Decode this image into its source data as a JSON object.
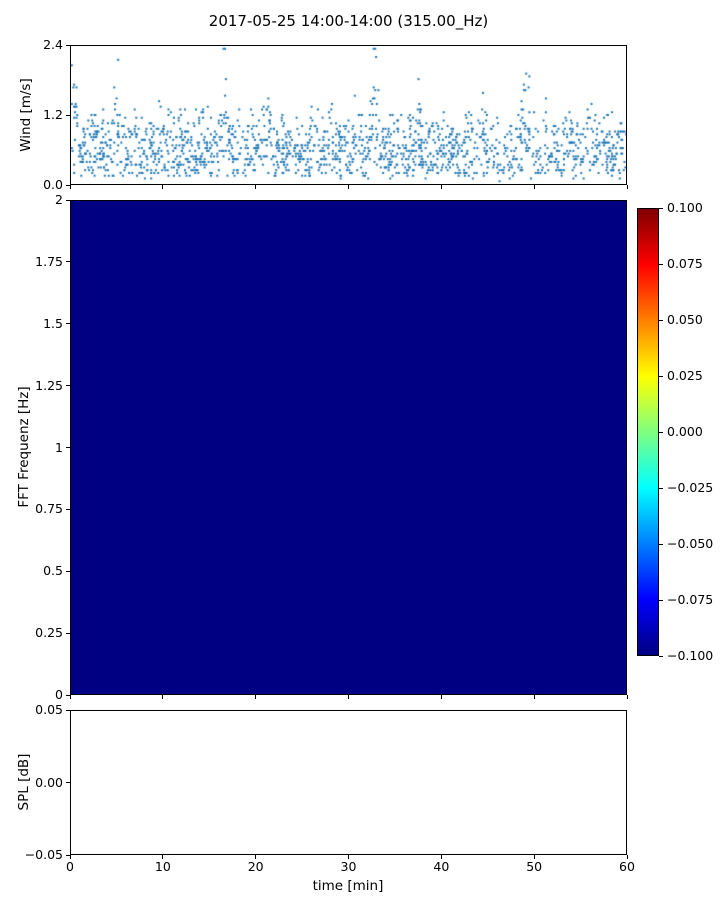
{
  "title": "2017-05-25 14:00-14:00 (315.00_Hz)",
  "chart_data": [
    {
      "id": "wind",
      "type": "scatter",
      "ylabel": "Wind [m/s]",
      "ylim": [
        0.0,
        2.4
      ],
      "ytick_values": [
        0.0,
        1.2,
        2.4
      ],
      "ytick_labels": [
        "0.0",
        "1.2",
        "2.4"
      ],
      "xlim": [
        0,
        60
      ],
      "marker_color": "#1f77b4",
      "marker_size_px": 2,
      "description": "Dense quantized scatter of wind speed vs time; band mostly 0.2-1.5 m/s with quasi-periodic bursts reaching ~2.35 m/s",
      "synthetic_points": {
        "seed": 42,
        "n_points": 1700,
        "y_quantum": 0.048,
        "x_quantum": 0.085
      }
    },
    {
      "id": "fft-spectrogram",
      "type": "heatmap",
      "ylabel": "FFT Frequenz [Hz]",
      "ylim": [
        0,
        2
      ],
      "ytick_values": [
        2,
        1.75,
        1.5,
        1.25,
        1,
        0.75,
        0.5,
        0.25,
        0
      ],
      "ytick_labels": [
        "2",
        "1.75",
        "1.5",
        "1.25",
        "1",
        "0.75",
        "0.5",
        "0.25",
        "0"
      ],
      "xlim": [
        0,
        60
      ],
      "uniform_value": -0.1,
      "fill_color": "#000083",
      "colorbar": {
        "colormap": "jet",
        "vmin": -0.1,
        "vmax": 0.1,
        "tick_labels": [
          "0.100",
          "0.075",
          "0.050",
          "0.025",
          "0.000",
          "−0.025",
          "−0.050",
          "−0.075",
          "−0.100"
        ],
        "gradient_stops_top_to_bottom": [
          "#800000",
          "#ff0000",
          "#ffff00",
          "#00ffff",
          "#0000ff",
          "#000080"
        ]
      }
    },
    {
      "id": "spl",
      "type": "line",
      "ylabel": "SPL [dB]",
      "ylim": [
        -0.05,
        0.05
      ],
      "ytick_values": [
        0.05,
        0.0,
        -0.05
      ],
      "ytick_labels": [
        "0.05",
        "0.00",
        "−0.05"
      ],
      "xlabel": "time [min]",
      "xlim": [
        0,
        60
      ],
      "xtick_values": [
        0,
        10,
        20,
        30,
        40,
        50,
        60
      ],
      "xtick_labels": [
        "0",
        "10",
        "20",
        "30",
        "40",
        "50",
        "60"
      ],
      "series": []
    }
  ]
}
